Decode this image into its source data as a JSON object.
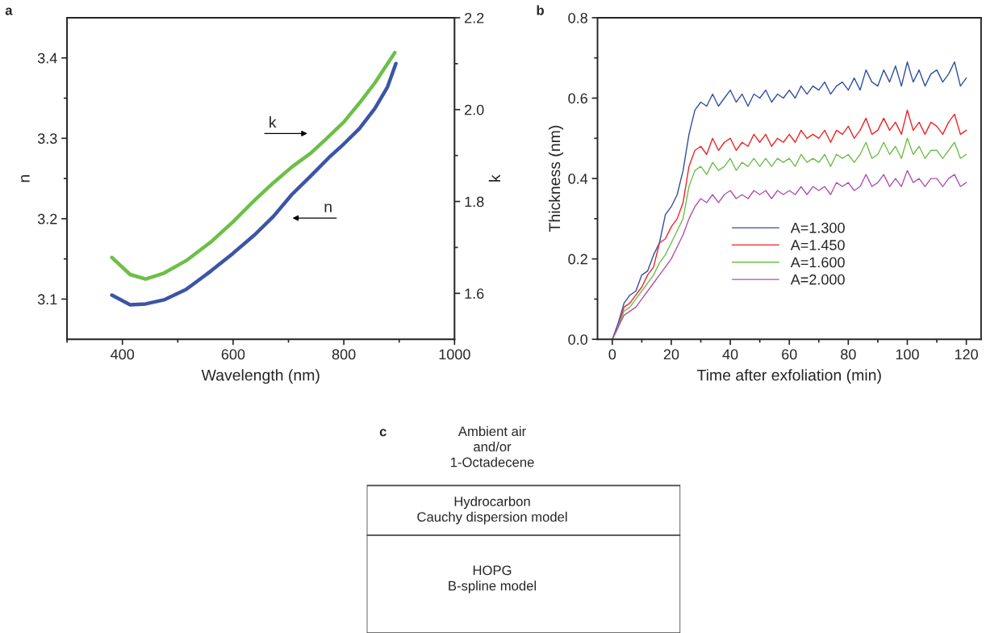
{
  "chart_data": [
    {
      "type": "line",
      "title": "a",
      "xlabel": "Wavelength (nm)",
      "ylabel": "n",
      "y2label": "k",
      "xlim": [
        300,
        1000
      ],
      "xticks": [
        {
          "value": 300,
          "label": null
        },
        400,
        {
          "value": 500,
          "label": null
        },
        600,
        {
          "value": 700,
          "label": null
        },
        800,
        {
          "value": 900,
          "label": null
        },
        1000
      ],
      "ylim": [
        3.05,
        3.45
      ],
      "yticks": [
        3.1,
        {
          "value": 3.15,
          "label": null
        },
        3.2,
        {
          "value": 3.25,
          "label": null
        },
        3.3,
        {
          "value": 3.35,
          "label": null
        },
        3.4
      ],
      "y2lim": [
        1.5,
        2.2
      ],
      "y2ticks": [
        1.6,
        {
          "value": 1.7,
          "label": null
        },
        1.8,
        {
          "value": 1.9,
          "label": null
        },
        {
          "value": 2,
          "label": "2.0"
        },
        {
          "value": 2.1,
          "label": null
        },
        2.2
      ],
      "series": [
        {
          "color": "#3b55a6",
          "axis": "y",
          "x": [
            381,
            414,
            442,
            475,
            515,
            560,
            600,
            639,
            673,
            706,
            740,
            773,
            800,
            828,
            856,
            879,
            894
          ],
          "values": [
            3.105,
            3.093,
            3.094,
            3.099,
            3.112,
            3.135,
            3.157,
            3.18,
            3.203,
            3.23,
            3.253,
            3.276,
            3.293,
            3.312,
            3.337,
            3.364,
            3.393
          ]
        },
        {
          "color": "#6cbf47",
          "axis": "y2",
          "x": [
            381,
            414,
            442,
            475,
            515,
            560,
            600,
            639,
            673,
            706,
            740,
            768,
            800,
            828,
            856,
            892
          ],
          "values": [
            1.678,
            1.641,
            1.631,
            1.644,
            1.671,
            1.712,
            1.756,
            1.803,
            1.841,
            1.875,
            1.905,
            1.936,
            1.973,
            2.014,
            2.058,
            2.124
          ]
        }
      ],
      "annotations": [
        "k",
        "n"
      ]
    },
    {
      "type": "line",
      "title": "b",
      "xlabel": "Time after exfoliation (min)",
      "ylabel": "Thickness (nm)",
      "xlim": [
        -5,
        125
      ],
      "xticks": [
        0,
        {
          "value": 10,
          "label": null
        },
        20,
        {
          "value": 30,
          "label": null
        },
        40,
        {
          "value": 50,
          "label": null
        },
        60,
        {
          "value": 70,
          "label": null
        },
        80,
        {
          "value": 90,
          "label": null
        },
        100,
        {
          "value": 110,
          "label": null
        },
        120
      ],
      "ylim": [
        0,
        0.8
      ],
      "yticks": [
        {
          "value": 0,
          "label": "0.0"
        },
        {
          "value": 0.1,
          "label": null
        },
        0.2,
        {
          "value": 0.3,
          "label": null
        },
        0.4,
        {
          "value": 0.5,
          "label": null
        },
        0.6,
        {
          "value": 0.7,
          "label": null
        },
        0.8
      ],
      "legend": "bottom right",
      "x": [
        0,
        2,
        4,
        6,
        8,
        10,
        12,
        14,
        16,
        18,
        20,
        22,
        24,
        26,
        28,
        30,
        32,
        34,
        36,
        38,
        40,
        42,
        44,
        46,
        48,
        50,
        52,
        54,
        56,
        58,
        60,
        62,
        64,
        66,
        68,
        70,
        72,
        74,
        76,
        78,
        80,
        82,
        84,
        86,
        88,
        90,
        92,
        94,
        96,
        98,
        100,
        102,
        104,
        106,
        108,
        110,
        112,
        114,
        116,
        118,
        120
      ],
      "series": [
        {
          "name": "A=1.300",
          "color": "#2f4fa2",
          "values": [
            0.0,
            0.04,
            0.09,
            0.11,
            0.12,
            0.16,
            0.17,
            0.21,
            0.24,
            0.31,
            0.33,
            0.36,
            0.42,
            0.51,
            0.57,
            0.59,
            0.58,
            0.61,
            0.58,
            0.6,
            0.62,
            0.59,
            0.61,
            0.58,
            0.61,
            0.6,
            0.62,
            0.59,
            0.61,
            0.6,
            0.62,
            0.6,
            0.63,
            0.61,
            0.63,
            0.62,
            0.64,
            0.61,
            0.63,
            0.64,
            0.62,
            0.65,
            0.62,
            0.67,
            0.64,
            0.63,
            0.67,
            0.64,
            0.68,
            0.63,
            0.69,
            0.64,
            0.67,
            0.63,
            0.66,
            0.67,
            0.64,
            0.66,
            0.69,
            0.63,
            0.65
          ]
        },
        {
          "name": "A=1.450",
          "color": "#ee2424",
          "values": [
            0.0,
            0.03,
            0.08,
            0.09,
            0.11,
            0.13,
            0.16,
            0.18,
            0.24,
            0.25,
            0.28,
            0.3,
            0.34,
            0.43,
            0.47,
            0.48,
            0.46,
            0.5,
            0.47,
            0.49,
            0.5,
            0.47,
            0.49,
            0.48,
            0.51,
            0.49,
            0.51,
            0.48,
            0.5,
            0.49,
            0.51,
            0.49,
            0.52,
            0.5,
            0.51,
            0.5,
            0.52,
            0.49,
            0.52,
            0.51,
            0.53,
            0.5,
            0.52,
            0.55,
            0.51,
            0.52,
            0.55,
            0.52,
            0.54,
            0.51,
            0.57,
            0.52,
            0.54,
            0.51,
            0.54,
            0.53,
            0.51,
            0.54,
            0.56,
            0.51,
            0.52
          ]
        },
        {
          "name": "A=1.600",
          "color": "#6fbf4a",
          "values": [
            0.0,
            0.03,
            0.07,
            0.08,
            0.1,
            0.12,
            0.14,
            0.16,
            0.19,
            0.21,
            0.24,
            0.27,
            0.3,
            0.38,
            0.42,
            0.43,
            0.41,
            0.44,
            0.42,
            0.43,
            0.45,
            0.42,
            0.44,
            0.43,
            0.45,
            0.43,
            0.45,
            0.43,
            0.45,
            0.44,
            0.45,
            0.43,
            0.46,
            0.44,
            0.45,
            0.44,
            0.46,
            0.43,
            0.46,
            0.45,
            0.46,
            0.44,
            0.46,
            0.49,
            0.45,
            0.46,
            0.49,
            0.46,
            0.48,
            0.45,
            0.5,
            0.46,
            0.48,
            0.45,
            0.47,
            0.47,
            0.45,
            0.47,
            0.49,
            0.45,
            0.46
          ]
        },
        {
          "name": "A=2.000",
          "color": "#b04fb0",
          "values": [
            0.0,
            0.03,
            0.06,
            0.07,
            0.08,
            0.1,
            0.12,
            0.14,
            0.16,
            0.18,
            0.2,
            0.23,
            0.26,
            0.3,
            0.33,
            0.35,
            0.34,
            0.36,
            0.34,
            0.36,
            0.37,
            0.35,
            0.36,
            0.35,
            0.37,
            0.36,
            0.37,
            0.35,
            0.37,
            0.36,
            0.37,
            0.36,
            0.38,
            0.36,
            0.38,
            0.37,
            0.38,
            0.36,
            0.39,
            0.38,
            0.39,
            0.37,
            0.38,
            0.41,
            0.38,
            0.39,
            0.41,
            0.38,
            0.4,
            0.38,
            0.42,
            0.39,
            0.4,
            0.38,
            0.4,
            0.4,
            0.38,
            0.4,
            0.41,
            0.38,
            0.39
          ]
        }
      ]
    },
    {
      "type": "other",
      "title": "c",
      "annotations": [
        "Ambient air\nand/or\n1-Octadecene",
        "Hydrocarbon\nCauchy dispersion model",
        "HOPG\nB-spline model"
      ]
    }
  ]
}
